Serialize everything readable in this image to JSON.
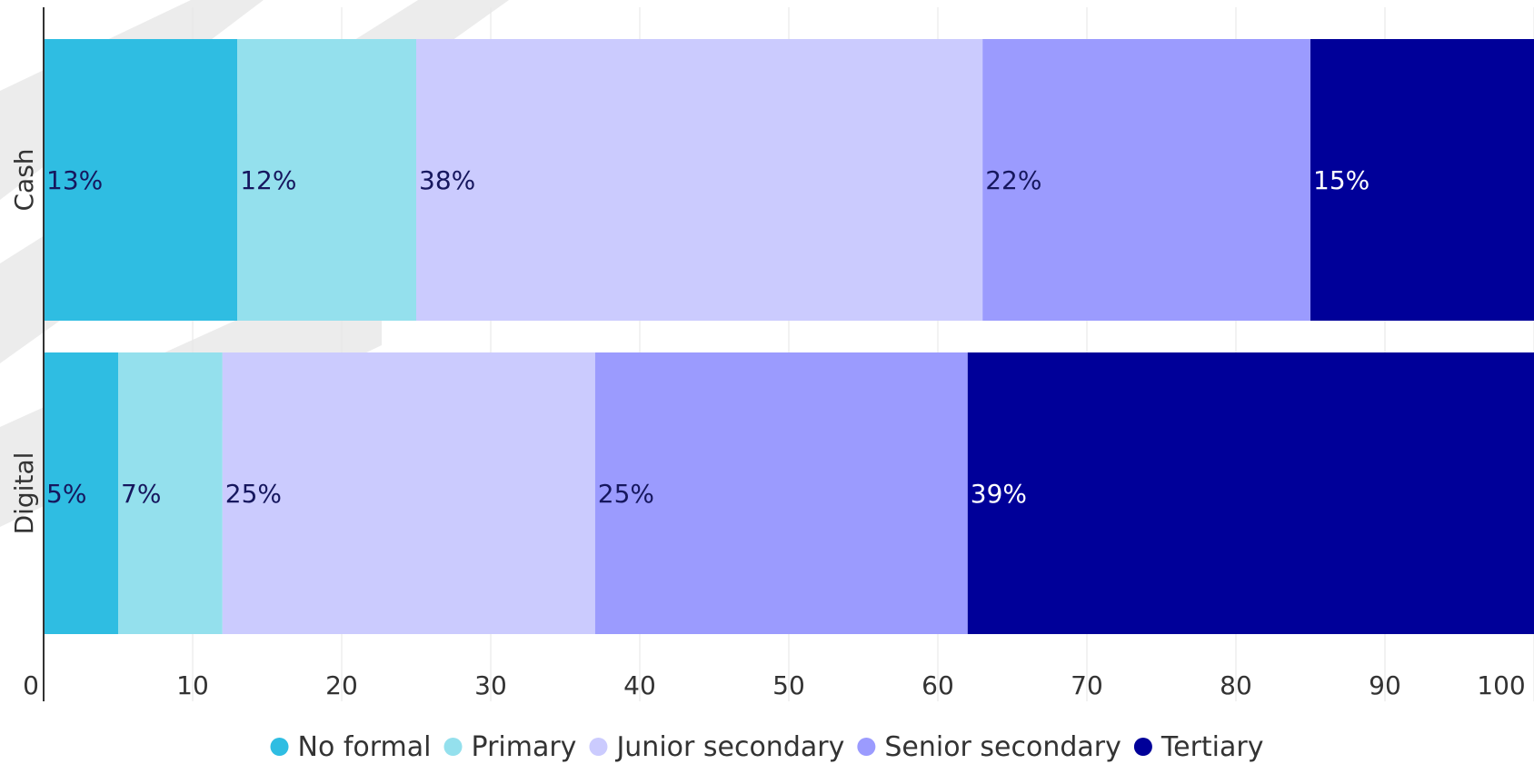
{
  "chart_data": {
    "type": "bar",
    "orientation": "horizontal",
    "stacked": true,
    "categories": [
      "Cash",
      "Digital"
    ],
    "series": [
      {
        "name": "No formal",
        "values": [
          13,
          5
        ],
        "labels": [
          "13%",
          "5%"
        ],
        "color": "#2fbde2",
        "label_color": "#16175e"
      },
      {
        "name": "Primary",
        "values": [
          12,
          7
        ],
        "labels": [
          "12%",
          "7%"
        ],
        "color": "#94e0ed",
        "label_color": "#16175e"
      },
      {
        "name": "Junior secondary",
        "values": [
          38,
          25
        ],
        "labels": [
          "38%",
          "25%"
        ],
        "color": "#cbcbfe",
        "label_color": "#16175e"
      },
      {
        "name": "Senior secondary",
        "values": [
          22,
          25
        ],
        "labels": [
          "22%",
          "25%"
        ],
        "color": "#9b9bfe",
        "label_color": "#16175e"
      },
      {
        "name": "Tertiary",
        "values": [
          15,
          39
        ],
        "labels": [
          "15%",
          "39%"
        ],
        "color": "#000099",
        "label_color": "#ffffff"
      }
    ],
    "xlim": [
      0,
      100
    ],
    "xticks": [
      0,
      10,
      20,
      30,
      40,
      50,
      60,
      70,
      80,
      90,
      100
    ],
    "grid": true,
    "legend_position": "bottom-center",
    "title": "",
    "xlabel": "",
    "ylabel": ""
  }
}
